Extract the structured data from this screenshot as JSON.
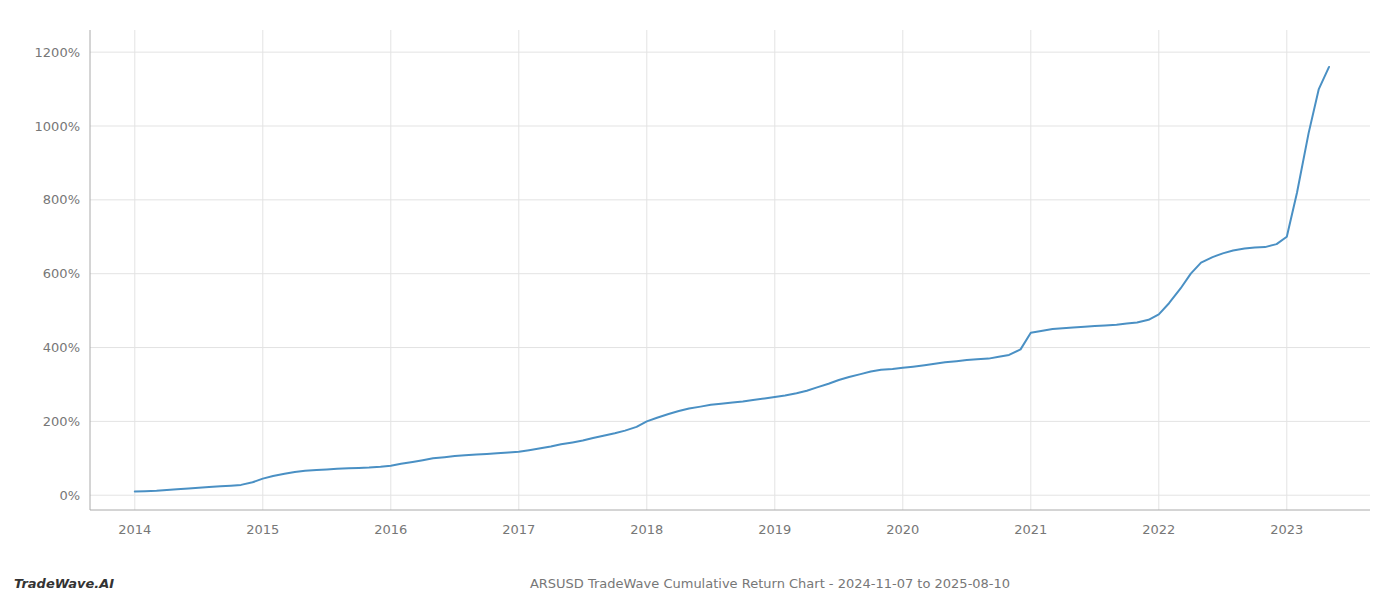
{
  "chart_data": {
    "type": "line",
    "title": "ARSUSD TradeWave Cumulative Return Chart - 2024-11-07 to 2025-08-10",
    "annotations": [
      "TradeWave.AI"
    ],
    "color": "#4a90c4",
    "grid": true,
    "x": [
      2014.0,
      2014.08,
      2014.17,
      2014.25,
      2014.33,
      2014.42,
      2014.5,
      2014.58,
      2014.67,
      2014.75,
      2014.83,
      2014.92,
      2015.0,
      2015.08,
      2015.17,
      2015.25,
      2015.33,
      2015.42,
      2015.5,
      2015.58,
      2015.67,
      2015.75,
      2015.83,
      2015.92,
      2016.0,
      2016.08,
      2016.17,
      2016.25,
      2016.33,
      2016.42,
      2016.5,
      2016.58,
      2016.67,
      2016.75,
      2016.83,
      2016.92,
      2017.0,
      2017.08,
      2017.17,
      2017.25,
      2017.33,
      2017.42,
      2017.5,
      2017.58,
      2017.67,
      2017.75,
      2017.83,
      2017.92,
      2018.0,
      2018.08,
      2018.17,
      2018.25,
      2018.33,
      2018.42,
      2018.5,
      2018.58,
      2018.67,
      2018.75,
      2018.83,
      2018.92,
      2019.0,
      2019.08,
      2019.17,
      2019.25,
      2019.33,
      2019.42,
      2019.5,
      2019.58,
      2019.67,
      2019.75,
      2019.83,
      2019.92,
      2020.0,
      2020.08,
      2020.17,
      2020.25,
      2020.33,
      2020.42,
      2020.5,
      2020.58,
      2020.67,
      2020.75,
      2020.83,
      2020.92,
      2021.0,
      2021.08,
      2021.17,
      2021.25,
      2021.33,
      2021.42,
      2021.5,
      2021.58,
      2021.67,
      2021.75,
      2021.83,
      2021.92,
      2022.0,
      2022.08,
      2022.17,
      2022.25,
      2022.33,
      2022.42,
      2022.5,
      2022.58,
      2022.67,
      2022.75,
      2022.83,
      2022.92,
      2023.0,
      2023.08,
      2023.17,
      2023.25,
      2023.33
    ],
    "values": [
      10,
      11,
      12,
      14,
      16,
      18,
      20,
      22,
      24,
      26,
      28,
      35,
      45,
      52,
      58,
      63,
      66,
      68,
      70,
      72,
      73,
      74,
      75,
      77,
      80,
      85,
      90,
      95,
      100,
      103,
      106,
      108,
      110,
      112,
      114,
      116,
      118,
      122,
      127,
      132,
      138,
      143,
      148,
      155,
      162,
      168,
      175,
      185,
      200,
      210,
      220,
      228,
      235,
      240,
      245,
      248,
      251,
      254,
      258,
      262,
      266,
      270,
      276,
      283,
      292,
      302,
      312,
      320,
      328,
      335,
      340,
      342,
      345,
      348,
      352,
      356,
      360,
      363,
      366,
      368,
      370,
      375,
      380,
      395,
      440,
      445,
      450,
      452,
      454,
      456,
      458,
      460,
      462,
      465,
      468,
      475,
      490,
      520,
      560,
      600,
      630,
      645,
      655,
      663,
      668,
      671,
      672,
      680,
      700,
      820,
      980,
      1100,
      1160
    ],
    "xlim": [
      2013.65,
      2023.65
    ],
    "xticks": [
      2014,
      2015,
      2016,
      2017,
      2018,
      2019,
      2020,
      2021,
      2022,
      2023
    ],
    "ylim": [
      -40,
      1260
    ],
    "yticks": [
      {
        "value": 0,
        "label": "0%"
      },
      {
        "value": 200,
        "label": "200%"
      },
      {
        "value": 400,
        "label": "400%"
      },
      {
        "value": 600,
        "label": "600%"
      },
      {
        "value": 800,
        "label": "800%"
      },
      {
        "value": 1000,
        "label": "1000%"
      },
      {
        "value": 1200,
        "label": "1200%"
      }
    ]
  }
}
